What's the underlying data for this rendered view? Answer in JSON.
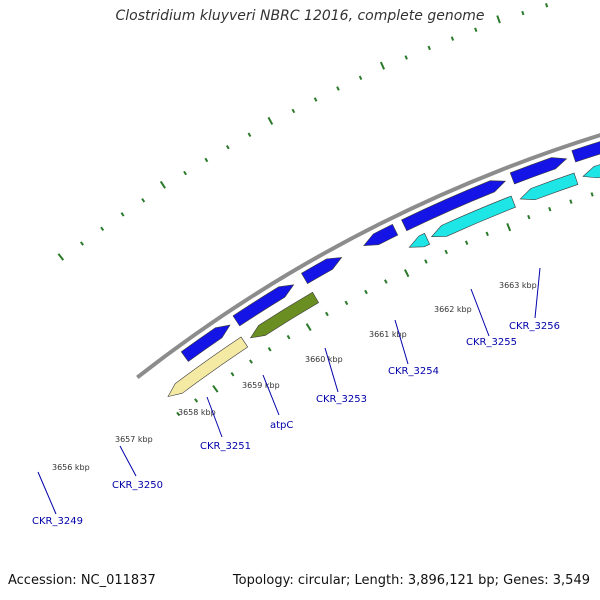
{
  "title": "Clostridium kluyveri NBRC 12016, complete genome",
  "footer": {
    "accession": "Accession: NC_011837",
    "topology": "Topology: circular; Length: 3,896,121 bp; Genes: 3,549"
  },
  "colors": {
    "cds_forward": "#1414e6",
    "cds_reverse": "#1ee6e6",
    "gene_yellow": "#f4eaa4",
    "gene_olive": "#6b8e23",
    "backbone": "#8c8c8c",
    "ticks": "#2a7a2a",
    "labels": "#0000aa"
  },
  "ticks": [
    {
      "label": "3656 kbp"
    },
    {
      "label": "3657 kbp"
    },
    {
      "label": "3658 kbp"
    },
    {
      "label": "3659 kbp"
    },
    {
      "label": "3660 kbp"
    },
    {
      "label": "3661 kbp"
    },
    {
      "label": "3662 kbp"
    },
    {
      "label": "3663 kbp"
    }
  ],
  "genes": [
    {
      "label": "CKR_3249"
    },
    {
      "label": "CKR_3250"
    },
    {
      "label": "CKR_3251"
    },
    {
      "label": "atpC"
    },
    {
      "label": "CKR_3253"
    },
    {
      "label": "CKR_3254"
    },
    {
      "label": "CKR_3255"
    },
    {
      "label": "CKR_3256"
    }
  ]
}
